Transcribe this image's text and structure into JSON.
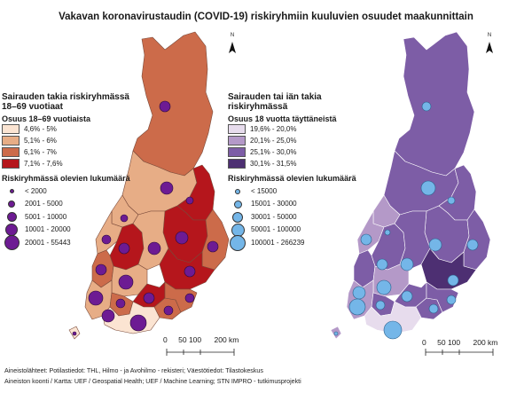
{
  "title": "Vakavan koronavirustaudin (COVID-19) riskiryhmiin kuuluvien osuudet maakunnittain",
  "colors": {
    "left_classes": [
      "#fbe4d2",
      "#e7ad86",
      "#cc6b4a",
      "#b5161c"
    ],
    "right_classes": [
      "#e7dced",
      "#b499c8",
      "#7d5da6",
      "#4d2f72"
    ],
    "left_circle": "#6d1b93",
    "right_circle": "#74b6e8"
  },
  "left_legend": {
    "heading": "Sairauden takia riskiryhmässä 18–69 vuotiaat",
    "share_title": "Osuus 18–69 vuotiaista",
    "classes": [
      "4,6% - 5%",
      "5,1% - 6%",
      "6,1% - 7%",
      "7,1% - 7,6%"
    ],
    "count_title": "Riskiryhmässä olevien lukumäärä",
    "counts": [
      "< 2000",
      "2001 - 5000",
      "5001 - 10000",
      "10001 - 20000",
      "20001 - 55443"
    ]
  },
  "right_legend": {
    "heading": "Sairauden tai iän takia riskiryhmässä",
    "share_title": "Osuus 18 vuotta täyttäneistä",
    "classes": [
      "19,6% - 20,0%",
      "20,1% - 25,0%",
      "25,1% - 30,0%",
      "30,1% - 31,5%"
    ],
    "count_title": "Riskiryhmässä olevien lukumäärä",
    "counts": [
      "< 15000",
      "15001 - 30000",
      "30001 - 50000",
      "50001 - 100000",
      "100001 - 266239"
    ]
  },
  "scale": {
    "ticks": [
      "0",
      "50",
      "100",
      "200 km"
    ]
  },
  "north_label": "N",
  "sources": {
    "line1": "Aineistolähteet: Potilastiedot: THL, Hilmo - ja Avohilmo - rekisteri; Väestötiedot: Tilastokeskus",
    "line2": "Aineiston koonti / Kartta: UEF / Geospatial Health; UEF / Machine Learning; STN IMPRO - tutkimusprojekti"
  }
}
